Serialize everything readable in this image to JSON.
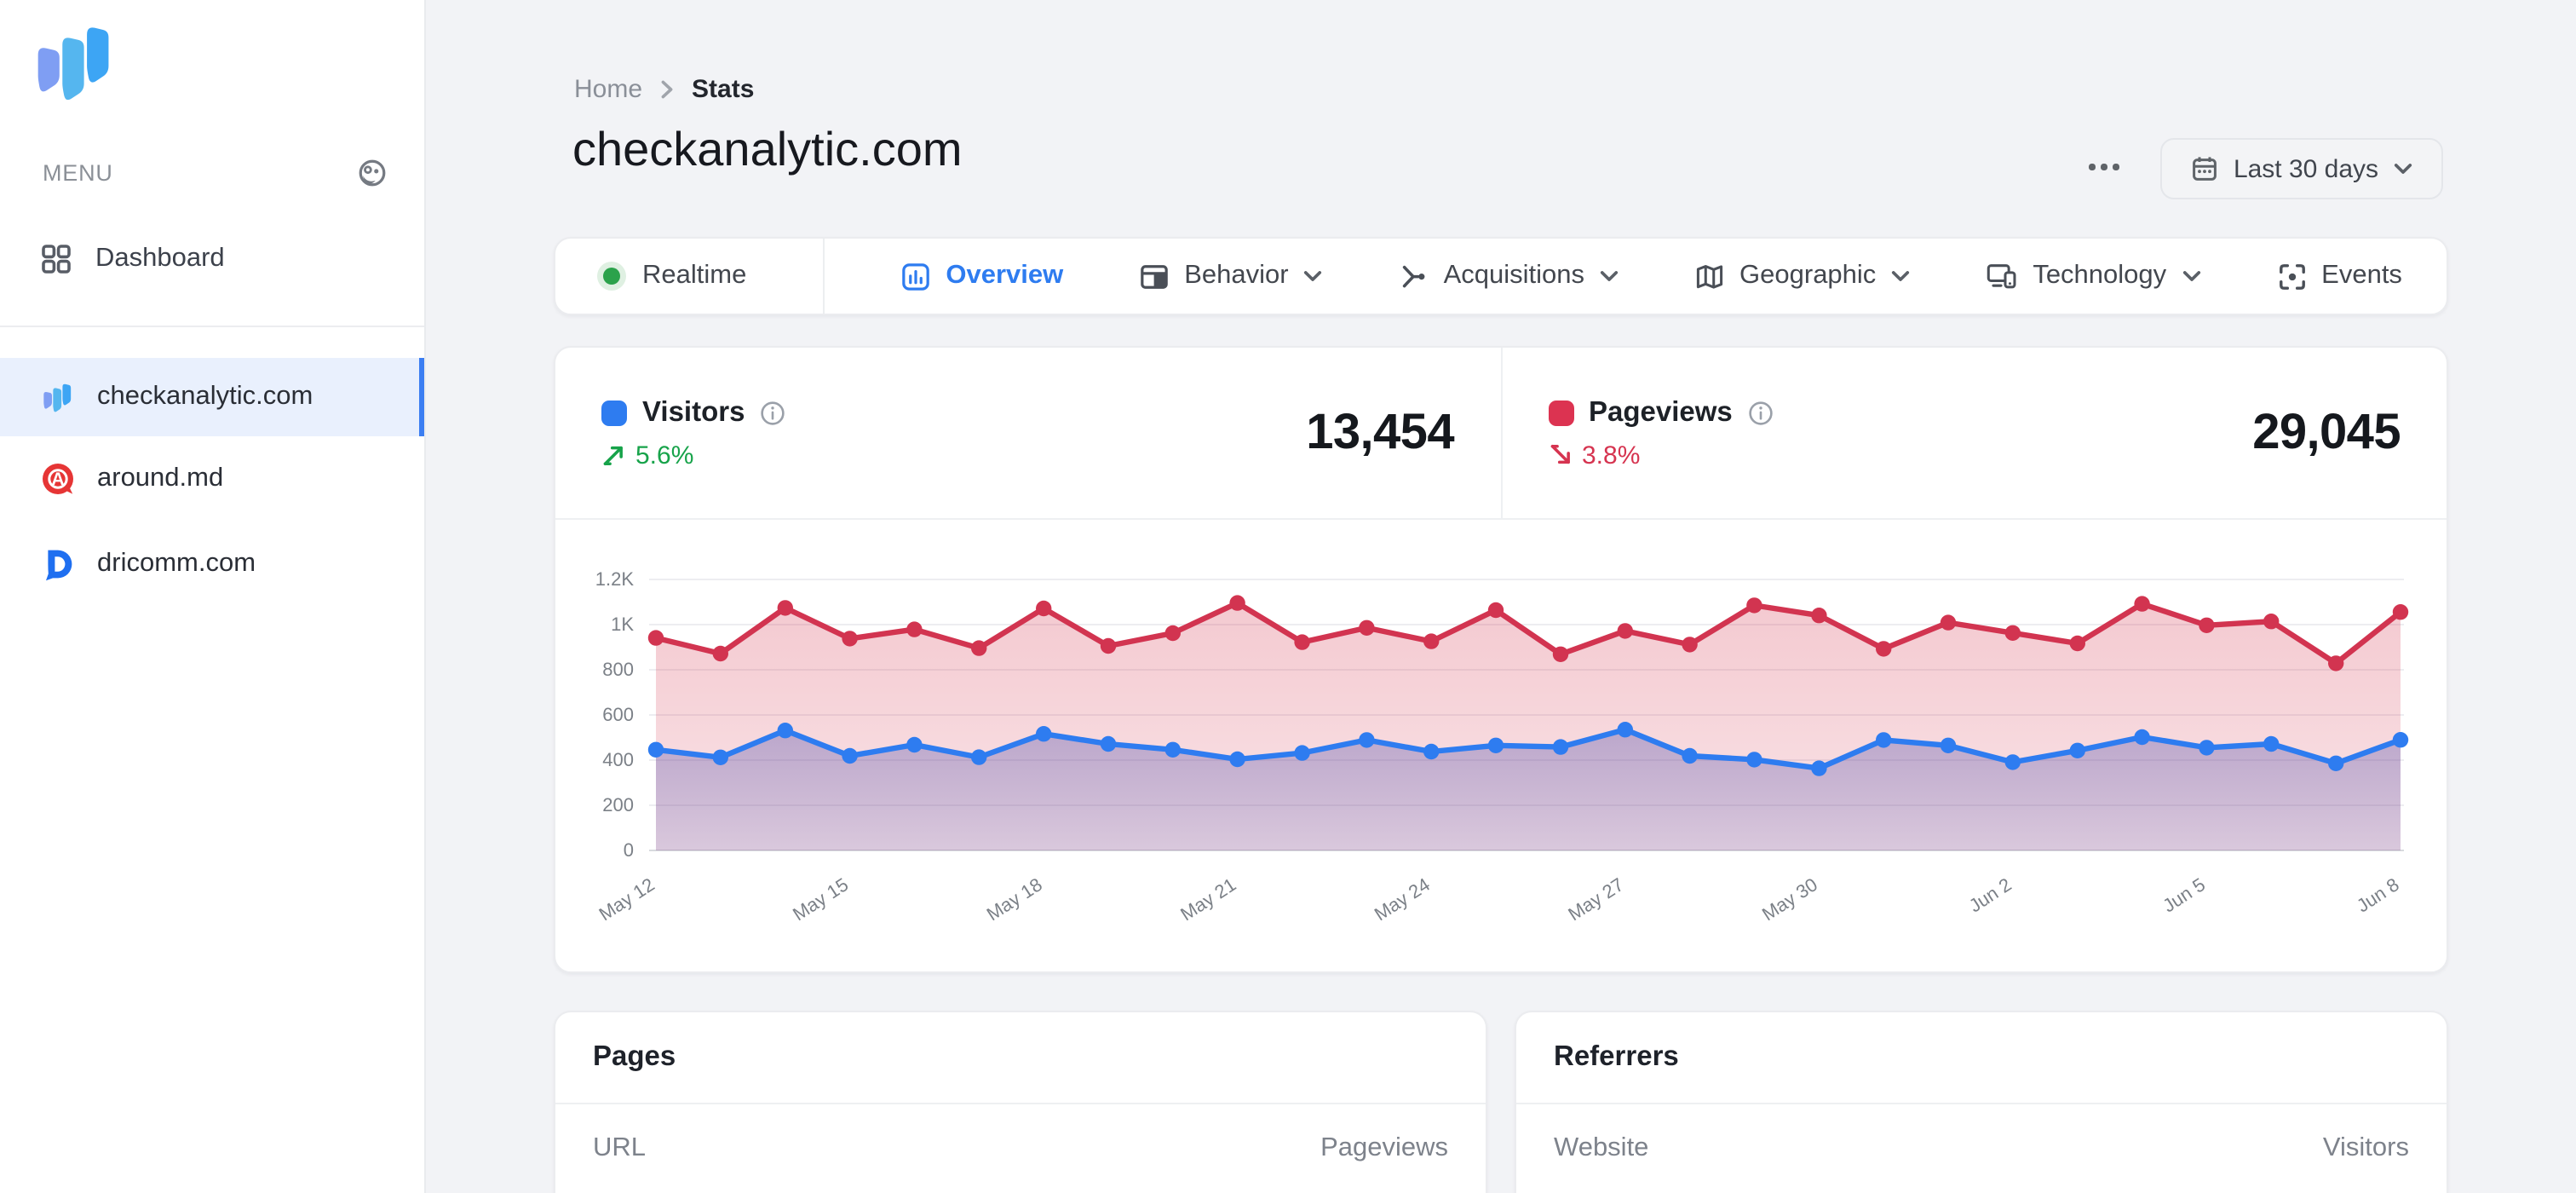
{
  "app": {
    "menu_label": "MENU"
  },
  "sidebar": {
    "items": [
      {
        "label": "Dashboard"
      }
    ],
    "sites": [
      {
        "label": "checkanalytic.com",
        "selected": true
      },
      {
        "label": "around.md",
        "selected": false
      },
      {
        "label": "dricomm.com",
        "selected": false
      }
    ],
    "accent_color": "#3c7ef2",
    "selected_bg": "#e9f0fd"
  },
  "breadcrumb": {
    "home": "Home",
    "current": "Stats"
  },
  "page": {
    "title": "checkanalytic.com"
  },
  "toolbar": {
    "more_label": "more-options",
    "date_range": "Last 30 days"
  },
  "tabs": {
    "items": [
      {
        "label": "Realtime"
      },
      {
        "label": "Overview"
      },
      {
        "label": "Behavior"
      },
      {
        "label": "Acquisitions"
      },
      {
        "label": "Geographic"
      },
      {
        "label": "Technology"
      },
      {
        "label": "Events"
      }
    ],
    "active": "Overview",
    "active_color": "#2e7cf0",
    "realtime_dot_color": "#2ba24b"
  },
  "stats": {
    "visitors": {
      "label": "Visitors",
      "value": "13,454",
      "delta": "5.6%",
      "direction": "up",
      "square_color": "#2e7cf0",
      "delta_color": "#17a34a"
    },
    "pageviews": {
      "label": "Pageviews",
      "value": "29,045",
      "delta": "3.8%",
      "direction": "down",
      "square_color": "#dc3351",
      "delta_color": "#d63450"
    }
  },
  "tables": {
    "pages": {
      "title": "Pages",
      "columns": [
        "URL",
        "Pageviews"
      ]
    },
    "referrers": {
      "title": "Referrers",
      "columns": [
        "Website",
        "Visitors"
      ]
    }
  },
  "chart_data": {
    "type": "line",
    "title": "",
    "xlabel": "",
    "ylabel": "",
    "ylim": [
      0,
      1200
    ],
    "y_ticks": [
      "0",
      "200",
      "400",
      "600",
      "800",
      "1K",
      "1.2K"
    ],
    "grid": true,
    "legend_position": "none",
    "points_are_daily": true,
    "label_every": 3,
    "x_labels_shown": [
      "May 12",
      "May 15",
      "May 18",
      "May 21",
      "May 24",
      "May 27",
      "May 30",
      "Jun 2",
      "Jun 5",
      "Jun 8"
    ],
    "series": [
      {
        "name": "Pageviews",
        "color": "#d23450",
        "fill_top": "rgba(212,48,74,0.26)",
        "fill_bottom": "rgba(212,48,74,0.13)",
        "values": [
          941,
          872,
          1074,
          938,
          979,
          896,
          1072,
          906,
          962,
          1096,
          922,
          986,
          926,
          1064,
          869,
          972,
          912,
          1085,
          1041,
          893,
          1009,
          963,
          917,
          1092,
          997,
          1014,
          829,
          1056
        ]
      },
      {
        "name": "Visitors",
        "color": "#2e7cf0",
        "fill_top": "rgba(90,88,176,0.38)",
        "fill_bottom": "rgba(90,88,176,0.20)",
        "values": [
          446,
          412,
          531,
          419,
          468,
          413,
          516,
          472,
          446,
          404,
          432,
          489,
          438,
          465,
          458,
          535,
          419,
          402,
          364,
          489,
          465,
          391,
          442,
          502,
          455,
          472,
          386,
          490
        ]
      }
    ]
  }
}
